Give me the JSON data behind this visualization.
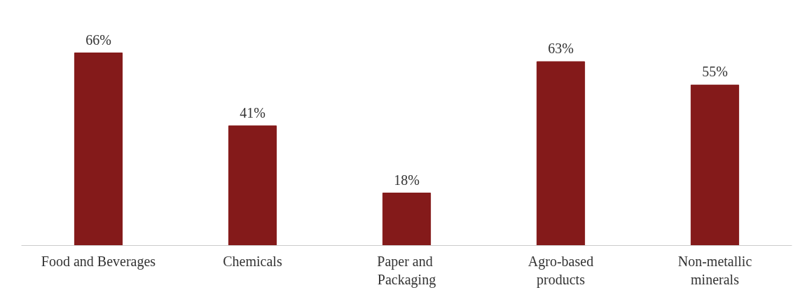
{
  "chart_data": {
    "type": "bar",
    "categories": [
      "Food and Beverages",
      "Chemicals",
      "Paper  and\nPackaging",
      "Agro-based\nproducts",
      "Non-metallic\nminerals"
    ],
    "values": [
      66,
      41,
      18,
      63,
      55
    ],
    "value_labels": [
      "66%",
      "41%",
      "18%",
      "63%",
      "55%"
    ],
    "color": "#841a1a",
    "grid": false,
    "tick_labels": "x"
  }
}
